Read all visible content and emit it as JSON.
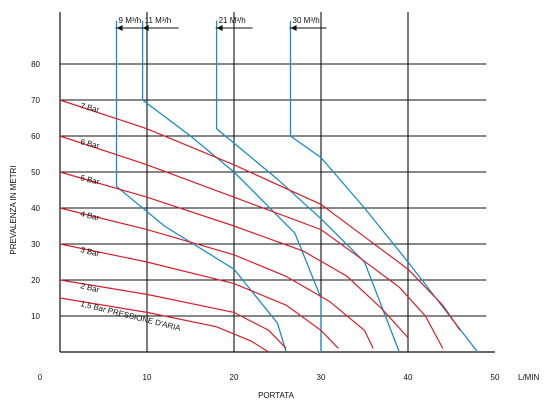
{
  "chart_data": {
    "type": "line",
    "xlabel": "PORTATA",
    "x_unit": "L/MIN",
    "ylabel": "PREVALENZA IN METRI",
    "xlim": [
      0,
      50
    ],
    "ylim": [
      0,
      90
    ],
    "x_ticks": [
      0,
      10,
      20,
      30,
      40,
      50
    ],
    "y_ticks": [
      10,
      20,
      30,
      40,
      50,
      60,
      70,
      80
    ],
    "grid": true,
    "colors": {
      "pressure": "#d4202a",
      "air": "#1a8fc4",
      "grid": "#111111",
      "background": "#ffffff"
    },
    "pressure_curves": [
      {
        "label": "7 Bar",
        "points": [
          [
            0,
            70
          ],
          [
            10,
            62
          ],
          [
            20,
            52
          ],
          [
            30,
            41
          ],
          [
            35,
            32
          ],
          [
            40,
            23
          ],
          [
            44,
            13
          ],
          [
            46,
            6
          ]
        ]
      },
      {
        "label": "6 Bar",
        "points": [
          [
            0,
            60
          ],
          [
            10,
            52
          ],
          [
            20,
            43
          ],
          [
            30,
            34
          ],
          [
            34,
            27
          ],
          [
            39,
            18
          ],
          [
            42,
            10
          ],
          [
            44,
            1
          ]
        ]
      },
      {
        "label": "5 Bar",
        "points": [
          [
            0,
            50
          ],
          [
            10,
            43
          ],
          [
            20,
            35
          ],
          [
            28,
            28
          ],
          [
            33,
            21
          ],
          [
            37,
            12
          ],
          [
            40,
            4
          ]
        ]
      },
      {
        "label": "4 Bar",
        "points": [
          [
            0,
            40
          ],
          [
            10,
            34
          ],
          [
            20,
            27
          ],
          [
            26,
            21
          ],
          [
            31,
            14
          ],
          [
            35,
            6
          ],
          [
            36,
            1
          ]
        ]
      },
      {
        "label": "3 Bar",
        "points": [
          [
            0,
            30
          ],
          [
            10,
            25
          ],
          [
            20,
            19
          ],
          [
            26,
            13
          ],
          [
            30,
            6
          ],
          [
            32,
            1
          ]
        ]
      },
      {
        "label": "2 Bar",
        "points": [
          [
            0,
            20
          ],
          [
            10,
            16
          ],
          [
            20,
            11
          ],
          [
            24,
            6
          ],
          [
            26,
            1
          ]
        ]
      },
      {
        "label": "1,5 Bar PRESSIONE D'ARIA",
        "points": [
          [
            0,
            15
          ],
          [
            10,
            11
          ],
          [
            18,
            7
          ],
          [
            22,
            3
          ],
          [
            24,
            0
          ]
        ]
      }
    ],
    "air_consumption_lines": [
      {
        "label": "9 M³/h",
        "points": [
          [
            6.5,
            92
          ],
          [
            6.5,
            46
          ],
          [
            12,
            35
          ],
          [
            20,
            23
          ],
          [
            25,
            8
          ],
          [
            26,
            0
          ]
        ]
      },
      {
        "label": "11 M³/h",
        "points": [
          [
            9.5,
            92
          ],
          [
            9.5,
            70
          ],
          [
            15,
            60
          ],
          [
            20,
            50
          ],
          [
            27,
            33
          ],
          [
            30,
            15
          ],
          [
            30,
            0
          ]
        ]
      },
      {
        "label": "21 M³/h",
        "points": [
          [
            18,
            92
          ],
          [
            18,
            62
          ],
          [
            25,
            48
          ],
          [
            30,
            37
          ],
          [
            35,
            25
          ],
          [
            39,
            0
          ]
        ]
      },
      {
        "label": "30 M³/h",
        "points": [
          [
            26.5,
            92
          ],
          [
            26.5,
            60
          ],
          [
            30,
            54
          ],
          [
            35,
            40
          ],
          [
            40,
            25
          ],
          [
            48,
            0
          ]
        ]
      }
    ]
  }
}
